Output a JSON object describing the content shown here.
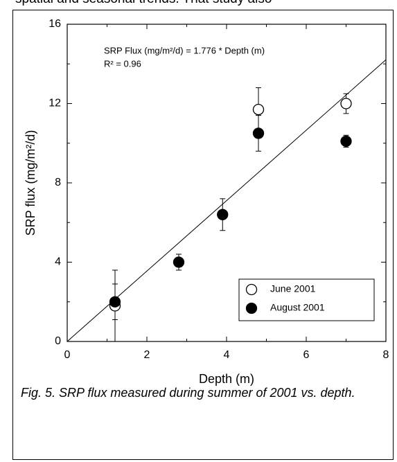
{
  "page_text": "spatial and seasonal trends. That study also",
  "caption": "Fig. 5. SRP flux measured during summer of 2001 vs. depth.",
  "chart_data": {
    "type": "scatter",
    "xlabel": "Depth (m)",
    "ylabel": "SRP flux (mg/m²/d)",
    "annotations": [
      "SRP Flux (mg/m²/d) = 1.776 * Depth (m)",
      "R² = 0.96"
    ],
    "fit_slope": 1.776,
    "xlim": [
      0,
      8
    ],
    "xticks": [
      0,
      2,
      4,
      6,
      8
    ],
    "ylim": [
      0,
      16
    ],
    "yticks": [
      0,
      4,
      8,
      12,
      16
    ],
    "legend": "lower right",
    "series": [
      {
        "name": "June 2001",
        "marker": "open",
        "color": "#000000",
        "x": [
          1.2,
          4.8,
          7.0
        ],
        "values": [
          1.8,
          11.7,
          12.0
        ],
        "errors": [
          1.8,
          1.1,
          0.5
        ]
      },
      {
        "name": "August 2001",
        "marker": "filled",
        "color": "#000000",
        "x": [
          1.2,
          2.8,
          3.9,
          4.8,
          7.0
        ],
        "values": [
          2.0,
          4.0,
          6.4,
          10.5,
          10.1
        ],
        "errors": [
          0.9,
          0.4,
          0.8,
          0.9,
          0.3
        ]
      }
    ]
  }
}
